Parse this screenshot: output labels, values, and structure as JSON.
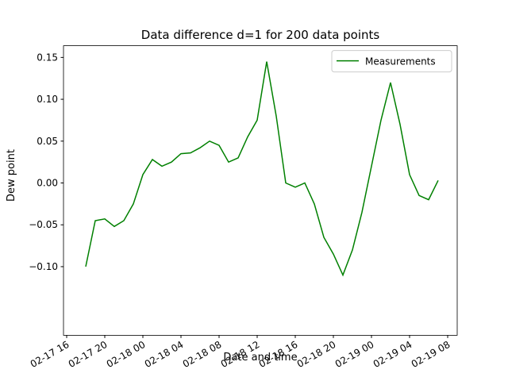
{
  "chart_data": {
    "type": "line",
    "title": "Data difference d=1 for 200 data points",
    "xlabel": "Date and time",
    "ylabel": "Dew point",
    "x": [
      "02-17 18",
      "02-17 19",
      "02-17 20",
      "02-17 21",
      "02-17 22",
      "02-17 23",
      "02-18 00",
      "02-18 01",
      "02-18 02",
      "02-18 03",
      "02-18 04",
      "02-18 05",
      "02-18 06",
      "02-18 07",
      "02-18 08",
      "02-18 09",
      "02-18 10",
      "02-18 11",
      "02-18 12",
      "02-18 13",
      "02-18 14",
      "02-18 15",
      "02-18 16",
      "02-18 17",
      "02-18 18",
      "02-18 19",
      "02-18 20",
      "02-18 21",
      "02-18 22",
      "02-18 23",
      "02-19 00",
      "02-19 01",
      "02-19 02",
      "02-19 03",
      "02-19 04",
      "02-19 05",
      "02-19 06",
      "02-19 07"
    ],
    "series": [
      {
        "name": "Measurements",
        "color": "#008000",
        "values": [
          -0.1,
          -0.045,
          -0.043,
          -0.052,
          -0.045,
          -0.025,
          0.01,
          0.028,
          0.02,
          0.025,
          0.035,
          0.036,
          0.042,
          0.05,
          0.045,
          0.025,
          0.03,
          0.055,
          0.075,
          0.145,
          0.08,
          0.0,
          -0.005,
          0.0,
          -0.025,
          -0.065,
          -0.085,
          -0.11,
          -0.08,
          -0.035,
          0.02,
          0.075,
          0.12,
          0.07,
          0.01,
          -0.015,
          -0.02,
          0.003
        ]
      }
    ],
    "xlim": [
      "02-17 16",
      "02-19 09"
    ],
    "xticks": [
      "02-17 16",
      "02-17 20",
      "02-18 00",
      "02-18 04",
      "02-18 08",
      "02-18 12",
      "02-18 16",
      "02-18 20",
      "02-19 00",
      "02-19 04",
      "02-19 08"
    ],
    "ylim": [
      -0.182,
      0.164
    ],
    "yticks": [
      {
        "value": -0.1,
        "label": "−0.10"
      },
      {
        "value": -0.05,
        "label": "−0.05"
      },
      {
        "value": 0,
        "label": "0.00"
      },
      {
        "value": 0.05,
        "label": "0.05"
      },
      {
        "value": 0.1,
        "label": "0.10"
      },
      {
        "value": 0.15,
        "label": "0.15"
      }
    ],
    "legend": "upper right",
    "grid": false
  }
}
